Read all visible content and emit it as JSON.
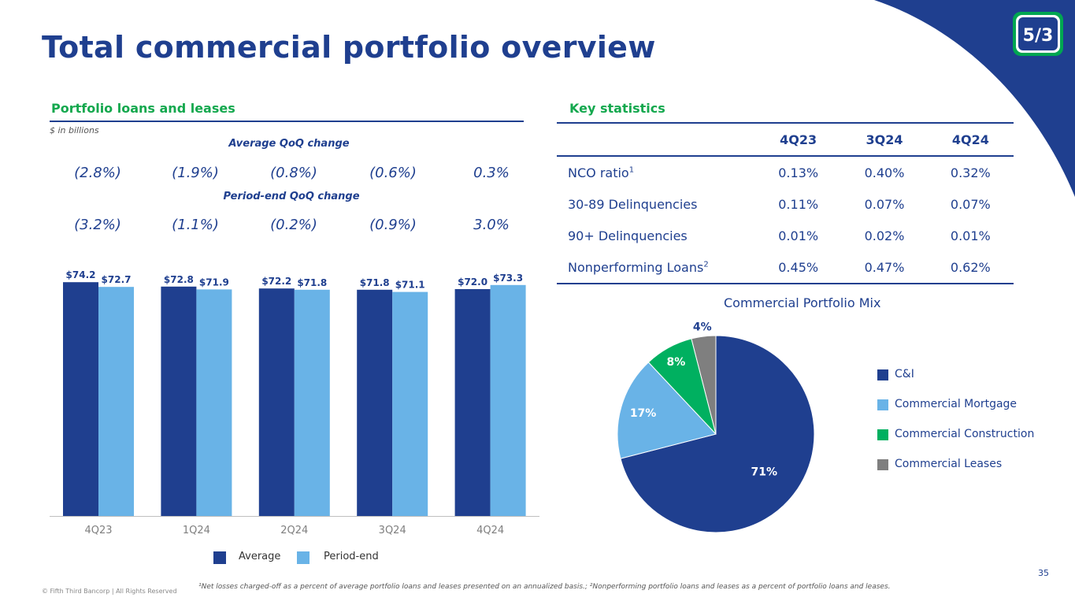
{
  "page": {
    "title": "Total commercial portfolio overview",
    "page_number": "35"
  },
  "footer": {
    "footnote": "¹Net losses charged-off as a percent of average portfolio loans and leases presented on an annualized basis.; ²Nonperforming portfolio loans and leases as a percent of portfolio loans and leases.",
    "copyright": "© Fifth Third Bancorp | All Rights Reserved"
  },
  "colors": {
    "navy": "#1f3f8f",
    "light_blue": "#69b3e7",
    "green": "#00b060",
    "gray": "#7f7f7f",
    "header_green": "#14a84e"
  },
  "logo": {
    "name": "fifth-third-logo-icon"
  },
  "portfolio": {
    "heading": "Portfolio loans and leases",
    "units": "$ in billions",
    "avg_qoq_label": "Average QoQ change",
    "avg_qoq": [
      "(2.8%)",
      "(1.9%)",
      "(0.8%)",
      "(0.6%)",
      "0.3%"
    ],
    "pe_qoq_label": "Period-end QoQ change",
    "pe_qoq": [
      "(3.2%)",
      "(1.1%)",
      "(0.2%)",
      "(0.9%)",
      "3.0%"
    ]
  },
  "stats": {
    "heading": "Key statistics",
    "columns": [
      "",
      "4Q23",
      "3Q24",
      "4Q24"
    ],
    "rows": [
      {
        "label": "NCO ratio",
        "sup": "1",
        "values": [
          "0.13%",
          "0.40%",
          "0.32%"
        ]
      },
      {
        "label": "30-89 Delinquencies",
        "sup": "",
        "values": [
          "0.11%",
          "0.07%",
          "0.07%"
        ]
      },
      {
        "label": "90+ Delinquencies",
        "sup": "",
        "values": [
          "0.01%",
          "0.02%",
          "0.01%"
        ]
      },
      {
        "label": "Nonperforming Loans",
        "sup": "2",
        "values": [
          "0.45%",
          "0.47%",
          "0.62%"
        ]
      }
    ]
  },
  "chart_data": [
    {
      "type": "bar",
      "categories": [
        "4Q23",
        "1Q24",
        "2Q24",
        "3Q24",
        "4Q24"
      ],
      "series": [
        {
          "name": "Average",
          "values": [
            74.2,
            72.8,
            72.2,
            71.8,
            72.0
          ],
          "labels": [
            "$74.2",
            "$72.8",
            "$72.2",
            "$71.8",
            "$72.0"
          ],
          "color": "#1f3f8f"
        },
        {
          "name": "Period-end",
          "values": [
            72.7,
            71.9,
            71.8,
            71.1,
            73.3
          ],
          "labels": [
            "$72.7",
            "$71.9",
            "$71.8",
            "$71.1",
            "$73.3"
          ],
          "color": "#69b3e7"
        }
      ],
      "ylim": [
        0,
        80
      ],
      "grid": false,
      "legend": "bottom"
    },
    {
      "type": "pie",
      "title": "Commercial Portfolio Mix",
      "slices": [
        {
          "name": "C&I",
          "value": 71,
          "label": "71%",
          "color": "#1f3f8f"
        },
        {
          "name": "Commercial Mortgage",
          "value": 17,
          "label": "17%",
          "color": "#69b3e7"
        },
        {
          "name": "Commercial Construction",
          "value": 8,
          "label": "8%",
          "color": "#00b060"
        },
        {
          "name": "Commercial Leases",
          "value": 4,
          "label": "4%",
          "color": "#7f7f7f"
        }
      ],
      "legend": "right"
    }
  ]
}
